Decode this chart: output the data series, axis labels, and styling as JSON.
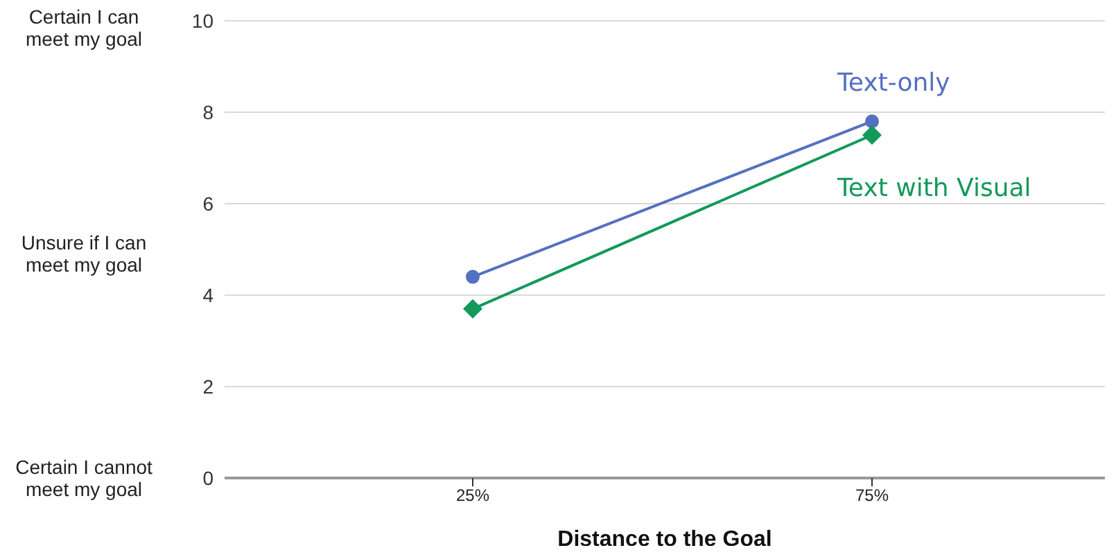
{
  "chart_data": {
    "type": "line",
    "xlabel": "Distance to the Goal",
    "categories": [
      "25%",
      "75%"
    ],
    "series": [
      {
        "name": "Text-only",
        "color": "#5470c0",
        "values": [
          4.4,
          7.8
        ],
        "marker": "circle"
      },
      {
        "name": "Text with Visual",
        "color": "#13995a",
        "values": [
          3.7,
          7.5
        ],
        "marker": "diamond"
      }
    ],
    "ylim": [
      0,
      10
    ],
    "yticks": [
      0,
      2,
      4,
      6,
      8,
      10
    ],
    "grid": "y",
    "legend": false,
    "annotations": [
      "Certain I can meet my goal",
      "Unsure if I can meet my goal",
      "Certain I cannot meet my goal"
    ]
  }
}
